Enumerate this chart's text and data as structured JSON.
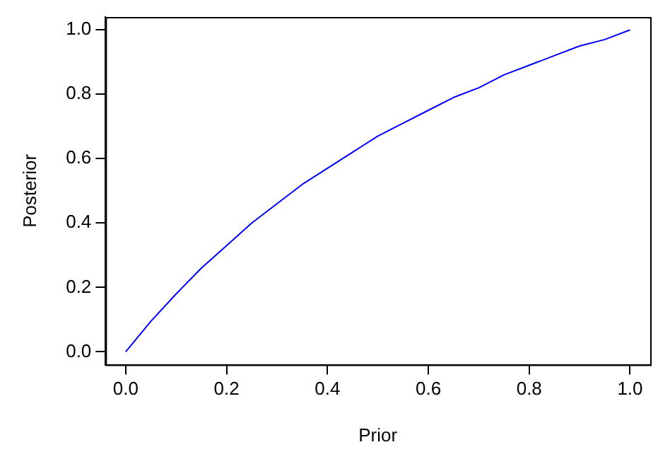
{
  "chart_data": {
    "type": "line",
    "xlabel": "Prior",
    "ylabel": "Posterior",
    "x": [
      0,
      0.05,
      0.1,
      0.15,
      0.2,
      0.25,
      0.3,
      0.35,
      0.4,
      0.45,
      0.5,
      0.55,
      0.6,
      0.65,
      0.7,
      0.75,
      0.8,
      0.85,
      0.9,
      0.95,
      1.0
    ],
    "series": [
      {
        "color": "#0000ff",
        "values": [
          0,
          0.095,
          0.18,
          0.26,
          0.33,
          0.4,
          0.46,
          0.52,
          0.57,
          0.62,
          0.67,
          0.71,
          0.75,
          0.79,
          0.82,
          0.86,
          0.89,
          0.92,
          0.95,
          0.97,
          1.0
        ]
      }
    ],
    "xlim": [
      -0.04,
      1.04
    ],
    "ylim": [
      -0.04,
      1.04
    ],
    "xticks": [
      {
        "value": 0,
        "label": "0.0"
      },
      {
        "value": 0.2,
        "label": "0.2"
      },
      {
        "value": 0.4,
        "label": "0.4"
      },
      {
        "value": 0.6,
        "label": "0.6"
      },
      {
        "value": 0.8,
        "label": "0.8"
      },
      {
        "value": 1,
        "label": "1.0"
      }
    ],
    "yticks": [
      {
        "value": 0,
        "label": "0.0"
      },
      {
        "value": 0.2,
        "label": "0.2"
      },
      {
        "value": 0.4,
        "label": "0.4"
      },
      {
        "value": 0.6,
        "label": "0.6"
      },
      {
        "value": 0.8,
        "label": "0.8"
      },
      {
        "value": 1,
        "label": "1.0"
      }
    ],
    "grid": false,
    "legend": false,
    "marker": "none",
    "line_style": "solid"
  }
}
